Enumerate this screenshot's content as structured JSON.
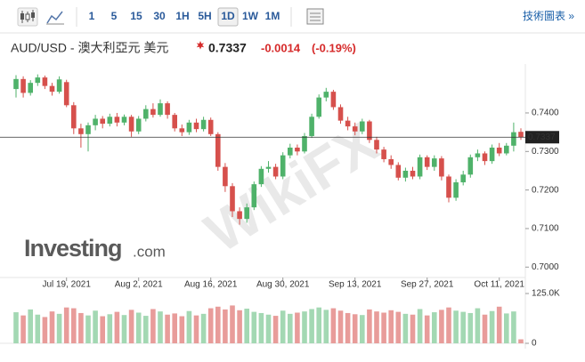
{
  "chart_data": {
    "type": "candlestick",
    "toolbar": {
      "intervals": [
        "1",
        "5",
        "15",
        "30",
        "1H",
        "5H",
        "1D",
        "1W",
        "1M"
      ],
      "active": "1D",
      "link": "技術圖表 »"
    },
    "title": "AUD/USD - 澳大利亞元 美元",
    "last_price": {
      "value": 0.7337,
      "label": "0.7337"
    },
    "change": "-0.0014",
    "change_percent": "(-0.19%)",
    "logo": {
      "brand": "Investing",
      "suffix": ".com"
    },
    "watermark": "WikiFX",
    "categories": [
      null,
      null,
      null,
      null,
      null,
      null,
      null,
      "Jul 19, 2021",
      null,
      null,
      null,
      null,
      null,
      null,
      null,
      null,
      null,
      "Aug 2, 2021",
      null,
      null,
      null,
      null,
      null,
      null,
      null,
      null,
      null,
      "Aug 16, 2021",
      null,
      null,
      null,
      null,
      null,
      null,
      null,
      null,
      null,
      "Aug 30, 2021",
      null,
      null,
      null,
      null,
      null,
      null,
      null,
      null,
      null,
      "Sep 13, 2021",
      null,
      null,
      null,
      null,
      null,
      null,
      null,
      null,
      null,
      "Sep 27, 2021",
      null,
      null,
      null,
      null,
      null,
      null,
      null,
      null,
      null,
      "Oct 11, 2021",
      null,
      null,
      null
    ],
    "open": [
      0.7462,
      0.7488,
      0.7452,
      0.7478,
      0.7492,
      0.747,
      0.7455,
      0.748,
      0.742,
      0.736,
      0.7345,
      0.7368,
      0.7385,
      0.7372,
      0.739,
      0.7375,
      0.739,
      0.7352,
      0.7385,
      0.741,
      0.7395,
      0.7425,
      0.7395,
      0.736,
      0.735,
      0.7375,
      0.7358,
      0.7382,
      0.7345,
      0.726,
      0.721,
      0.7145,
      0.7125,
      0.7155,
      0.7215,
      0.7255,
      0.726,
      0.7235,
      0.729,
      0.731,
      0.73,
      0.734,
      0.739,
      0.744,
      0.7455,
      0.7415,
      0.738,
      0.7365,
      0.7352,
      0.7378,
      0.733,
      0.7305,
      0.728,
      0.7265,
      0.7232,
      0.725,
      0.7235,
      0.7285,
      0.726,
      0.7282,
      0.7235,
      0.718,
      0.722,
      0.724,
      0.7285,
      0.7295,
      0.7275,
      0.731,
      0.7295,
      0.7315,
      0.7351
    ],
    "high": [
      0.7498,
      0.7495,
      0.7485,
      0.75,
      0.7497,
      0.7478,
      0.7495,
      0.7486,
      0.7428,
      0.7372,
      0.7375,
      0.7395,
      0.7392,
      0.7398,
      0.74,
      0.7396,
      0.7395,
      0.7392,
      0.742,
      0.7425,
      0.7435,
      0.743,
      0.74,
      0.737,
      0.7382,
      0.7385,
      0.739,
      0.7388,
      0.735,
      0.727,
      0.7218,
      0.7155,
      0.7165,
      0.7222,
      0.7262,
      0.7275,
      0.7268,
      0.7298,
      0.732,
      0.7318,
      0.7348,
      0.7398,
      0.7448,
      0.7465,
      0.746,
      0.7422,
      0.739,
      0.7375,
      0.7385,
      0.7382,
      0.7338,
      0.7312,
      0.729,
      0.7272,
      0.7258,
      0.726,
      0.7292,
      0.729,
      0.729,
      0.7288,
      0.724,
      0.7228,
      0.725,
      0.7292,
      0.7305,
      0.73,
      0.7318,
      0.7322,
      0.7322,
      0.7375,
      0.736
    ],
    "low": [
      0.744,
      0.744,
      0.7445,
      0.747,
      0.7462,
      0.7445,
      0.745,
      0.7415,
      0.7345,
      0.731,
      0.73,
      0.7355,
      0.736,
      0.7365,
      0.7365,
      0.7368,
      0.7338,
      0.7345,
      0.7378,
      0.7388,
      0.739,
      0.7385,
      0.7352,
      0.734,
      0.7343,
      0.735,
      0.7352,
      0.734,
      0.725,
      0.7195,
      0.713,
      0.711,
      0.7115,
      0.7148,
      0.7208,
      0.7245,
      0.7228,
      0.7228,
      0.7282,
      0.729,
      0.7295,
      0.7335,
      0.7385,
      0.743,
      0.7408,
      0.7372,
      0.7355,
      0.7342,
      0.7345,
      0.7322,
      0.7295,
      0.7272,
      0.7255,
      0.7225,
      0.7222,
      0.7228,
      0.7228,
      0.7252,
      0.725,
      0.7225,
      0.7168,
      0.7172,
      0.7212,
      0.7232,
      0.7275,
      0.7265,
      0.7268,
      0.7288,
      0.729,
      0.73,
      0.733
    ],
    "close": [
      0.7488,
      0.7452,
      0.7478,
      0.7492,
      0.747,
      0.7455,
      0.7487,
      0.742,
      0.736,
      0.7345,
      0.7368,
      0.7385,
      0.7372,
      0.739,
      0.7375,
      0.739,
      0.7352,
      0.7385,
      0.741,
      0.7395,
      0.7425,
      0.7395,
      0.736,
      0.735,
      0.7375,
      0.7358,
      0.7382,
      0.7345,
      0.726,
      0.721,
      0.7145,
      0.7125,
      0.7155,
      0.7215,
      0.7255,
      0.726,
      0.7235,
      0.729,
      0.731,
      0.73,
      0.734,
      0.739,
      0.744,
      0.7455,
      0.7415,
      0.738,
      0.7365,
      0.7352,
      0.7378,
      0.733,
      0.7305,
      0.728,
      0.7265,
      0.7232,
      0.725,
      0.7235,
      0.7285,
      0.726,
      0.7282,
      0.7235,
      0.718,
      0.722,
      0.724,
      0.7285,
      0.7295,
      0.7275,
      0.731,
      0.7295,
      0.7315,
      0.735,
      0.7337
    ],
    "volume": [
      78000,
      70000,
      85000,
      72000,
      66000,
      80000,
      74000,
      90000,
      88000,
      76000,
      70000,
      82000,
      68000,
      73000,
      79000,
      71000,
      84000,
      77000,
      69000,
      86000,
      80000,
      72000,
      75000,
      68000,
      81000,
      70000,
      74000,
      88000,
      92000,
      85000,
      95000,
      83000,
      87000,
      79000,
      76000,
      72000,
      69000,
      82000,
      74000,
      77000,
      80000,
      86000,
      90000,
      84000,
      88000,
      82000,
      76000,
      73000,
      71000,
      85000,
      80000,
      77000,
      83000,
      79000,
      74000,
      72000,
      86000,
      70000,
      78000,
      84000,
      90000,
      82000,
      79000,
      76000,
      88000,
      72000,
      81000,
      92000,
      75000,
      80000,
      10000
    ],
    "ylim": [
      0.6973,
      0.7513
    ],
    "yticks": [
      {
        "value": 0.7,
        "label": "0.7000"
      },
      {
        "value": 0.71,
        "label": "0.7100"
      },
      {
        "value": 0.72,
        "label": "0.7200"
      },
      {
        "value": 0.73,
        "label": "0.7300"
      },
      {
        "value": 0.74,
        "label": "0.7400"
      }
    ],
    "volume_ylim": [
      0,
      125000
    ],
    "volume_yticks": [
      0,
      {
        "value": 125000,
        "label": "125.0K"
      }
    ],
    "up_color": "#4fb26a",
    "down_color": "#d6504c",
    "volume_up_color": "#a3d8b3",
    "volume_down_color": "#e89c9a",
    "title_color": "#333333",
    "change_color": "#d62b2b"
  }
}
